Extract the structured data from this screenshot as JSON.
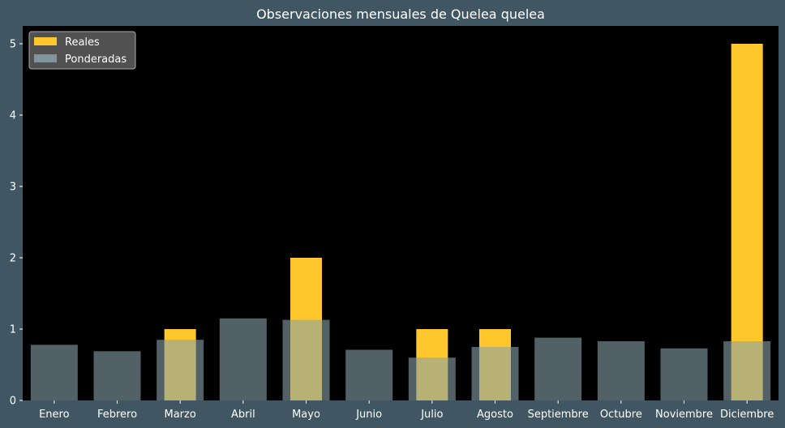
{
  "chart_data": {
    "type": "bar",
    "title": "Observaciones mensuales de Quelea quelea",
    "xlabel": "",
    "ylabel": "",
    "categories": [
      "Enero",
      "Febrero",
      "Marzo",
      "Abril",
      "Mayo",
      "Junio",
      "Julio",
      "Agosto",
      "Septiembre",
      "Octubre",
      "Noviembre",
      "Diciembre"
    ],
    "series": [
      {
        "name": "Reales",
        "color": "#ffc72c",
        "values": [
          0,
          0,
          1,
          0,
          2,
          0,
          1,
          1,
          0,
          0,
          0,
          5
        ]
      },
      {
        "name": "Ponderadas",
        "color": "#87a1a8",
        "values": [
          0.78,
          0.69,
          0.85,
          1.15,
          1.13,
          0.71,
          0.6,
          0.75,
          0.88,
          0.83,
          0.73,
          0.83
        ]
      }
    ],
    "ylim": [
      0,
      5.25
    ],
    "yticks": [
      0,
      1,
      2,
      3,
      4,
      5
    ],
    "grid": false,
    "legend_position": "top-left",
    "colors": {
      "figure_background": "#405763",
      "plot_background": "#000000",
      "text": "#ffffff"
    }
  }
}
